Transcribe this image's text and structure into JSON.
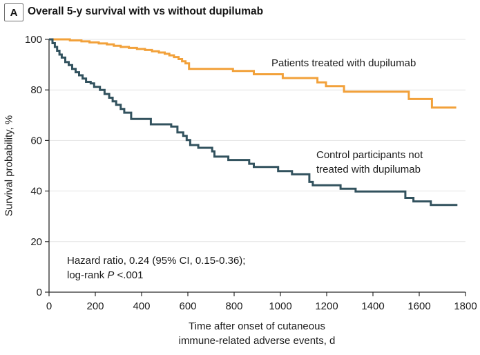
{
  "panel": {
    "label": "A",
    "title": "Overall 5-y survival with vs without dupilumab"
  },
  "legend": {
    "dupilumab_label": "Patients treated with dupilumab",
    "control_label_line1": "Control participants not",
    "control_label_line2": "treated with dupilumab"
  },
  "annotation": {
    "line1": "Hazard ratio, 0.24 (95% CI, 0.15-0.36);",
    "line2_prefix": "log-rank ",
    "line2_italic": "P",
    "line2_suffix": " <.001"
  },
  "chart_data": {
    "type": "line",
    "subtype": "kaplan-meier-step",
    "title": "Overall 5-y survival with vs without dupilumab",
    "xlabel": "Time after onset of cutaneous immune-related adverse events, d",
    "xlabel_lines": [
      "Time after onset of cutaneous",
      "immune-related adverse events, d"
    ],
    "ylabel": "Survival probability, %",
    "xlim": [
      0,
      1800
    ],
    "ylim": [
      0,
      100
    ],
    "x_ticks": [
      0,
      200,
      400,
      600,
      800,
      1000,
      1200,
      1400,
      1600,
      1800
    ],
    "y_ticks": [
      0,
      20,
      40,
      60,
      80,
      100
    ],
    "grid": "horizontal",
    "legend_position": "inline-annotations",
    "colors": {
      "dupilumab": "#F2A13A",
      "control": "#32525E",
      "gridline": "#E3E3E3",
      "axis": "#2a2a2a"
    },
    "series": [
      {
        "name": "Patients treated with dupilumab",
        "color_key": "dupilumab",
        "points": [
          [
            0,
            100
          ],
          [
            90,
            99.6
          ],
          [
            140,
            99.2
          ],
          [
            175,
            98.8
          ],
          [
            215,
            98.4
          ],
          [
            250,
            98.0
          ],
          [
            280,
            97.5
          ],
          [
            310,
            97.0
          ],
          [
            345,
            96.6
          ],
          [
            380,
            96.2
          ],
          [
            415,
            95.8
          ],
          [
            445,
            95.3
          ],
          [
            475,
            94.8
          ],
          [
            500,
            94.3
          ],
          [
            520,
            93.7
          ],
          [
            540,
            93.0
          ],
          [
            560,
            92.2
          ],
          [
            575,
            91.3
          ],
          [
            590,
            90.5
          ],
          [
            605,
            88.3
          ],
          [
            795,
            87.5
          ],
          [
            885,
            86.2
          ],
          [
            1010,
            84.7
          ],
          [
            1160,
            83.0
          ],
          [
            1197,
            81.5
          ],
          [
            1275,
            79.3
          ],
          [
            1555,
            76.4
          ],
          [
            1655,
            73.0
          ],
          [
            1760,
            73.0
          ]
        ]
      },
      {
        "name": "Control participants not treated with dupilumab",
        "color_key": "control",
        "points": [
          [
            0,
            100
          ],
          [
            15,
            98.5
          ],
          [
            25,
            97.0
          ],
          [
            35,
            95.5
          ],
          [
            45,
            94.0
          ],
          [
            55,
            92.8
          ],
          [
            70,
            91.0
          ],
          [
            85,
            89.8
          ],
          [
            100,
            88.3
          ],
          [
            115,
            87.0
          ],
          [
            130,
            85.8
          ],
          [
            145,
            84.5
          ],
          [
            160,
            83.2
          ],
          [
            180,
            82.6
          ],
          [
            195,
            81.2
          ],
          [
            220,
            80.0
          ],
          [
            240,
            78.4
          ],
          [
            260,
            76.9
          ],
          [
            275,
            75.5
          ],
          [
            290,
            74.1
          ],
          [
            310,
            72.5
          ],
          [
            325,
            71.0
          ],
          [
            355,
            68.5
          ],
          [
            440,
            66.4
          ],
          [
            528,
            65.5
          ],
          [
            555,
            63.2
          ],
          [
            580,
            61.8
          ],
          [
            595,
            60.2
          ],
          [
            610,
            58.2
          ],
          [
            645,
            57.1
          ],
          [
            705,
            55.7
          ],
          [
            715,
            53.6
          ],
          [
            775,
            52.3
          ],
          [
            865,
            50.8
          ],
          [
            885,
            49.5
          ],
          [
            990,
            47.9
          ],
          [
            1050,
            46.6
          ],
          [
            1125,
            43.6
          ],
          [
            1140,
            42.3
          ],
          [
            1260,
            40.9
          ],
          [
            1325,
            39.8
          ],
          [
            1540,
            37.3
          ],
          [
            1575,
            35.9
          ],
          [
            1650,
            34.5
          ],
          [
            1765,
            34.5
          ]
        ]
      }
    ],
    "hazard_ratio": "0.24",
    "ci_95": "0.15-0.36",
    "log_rank_p": "<.001"
  }
}
